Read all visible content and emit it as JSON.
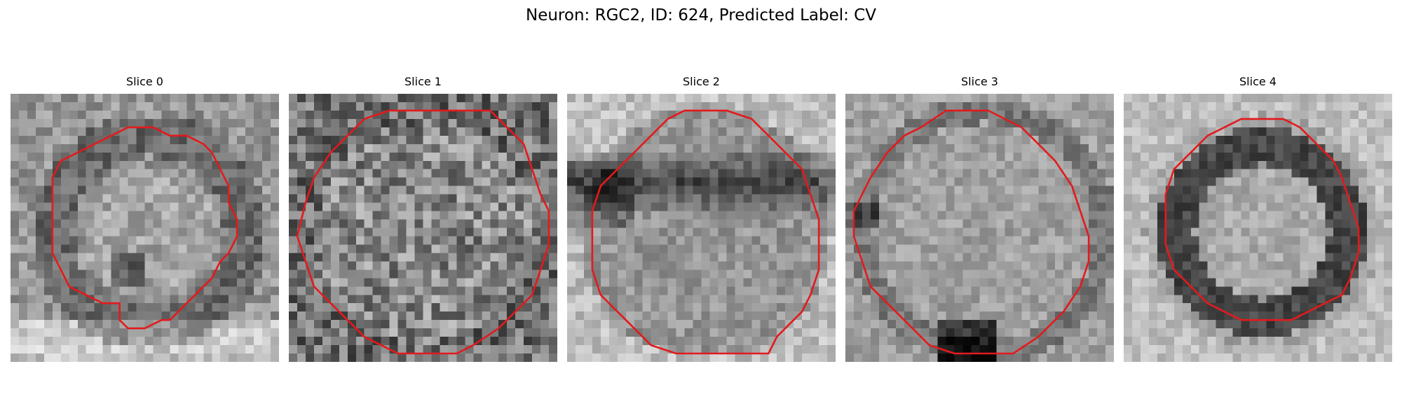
{
  "figure": {
    "title": "Neuron: RGC2, ID: 624, Predicted Label: CV"
  },
  "panels": [
    {
      "title": "Slice 0",
      "kind": "nucleus",
      "seed": 11,
      "contour_color": "#e31a1c"
    },
    {
      "title": "Slice 1",
      "kind": "speckled",
      "seed": 23,
      "contour_color": "#e31a1c"
    },
    {
      "title": "Slice 2",
      "kind": "darkband",
      "seed": 37,
      "contour_color": "#e31a1c"
    },
    {
      "title": "Slice 3",
      "kind": "smooth",
      "seed": 51,
      "contour_color": "#e31a1c"
    },
    {
      "title": "Slice 4",
      "kind": "ring",
      "seed": 73,
      "contour_color": "#e31a1c"
    }
  ]
}
